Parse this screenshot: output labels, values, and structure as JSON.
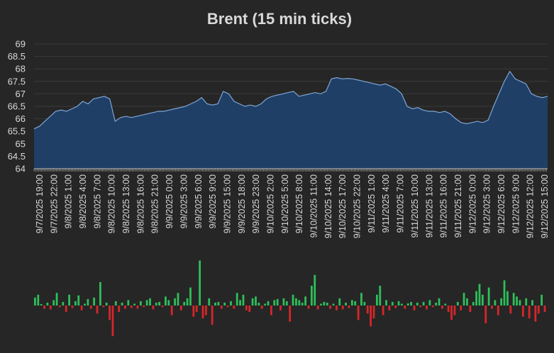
{
  "colors": {
    "background": "#262626",
    "area_fill": "#1f3f66",
    "area_line": "#7fa6d6",
    "grid": "#3a3a3a",
    "text": "#d9d9d9",
    "positive_bar": "#2fbf5a",
    "negative_bar": "#d8262a"
  },
  "chart_data": [
    {
      "type": "area",
      "title": "Brent (15 min ticks)",
      "xlabel": "",
      "ylabel": "",
      "ylim": [
        64,
        69
      ],
      "yticks": [
        "64",
        "64.5",
        "65",
        "65.5",
        "66",
        "66.5",
        "67",
        "67.5",
        "68",
        "68.5",
        "69"
      ],
      "grid": true,
      "xticks": [
        "9/7/2025 19:00",
        "9/7/2025 22:00",
        "9/8/2025 1:00",
        "9/8/2025 4:00",
        "9/8/2025 7:00",
        "9/8/2025 10:00",
        "9/8/2025 13:00",
        "9/8/2025 16:00",
        "9/8/2025 21:00",
        "9/9/2025 0:00",
        "9/9/2025 3:00",
        "9/9/2025 6:00",
        "9/9/2025 9:00",
        "9/9/2025 15:00",
        "9/9/2025 18:00",
        "9/9/2025 23:00",
        "9/10/2025 2:00",
        "9/10/2025 5:00",
        "9/10/2025 8:00",
        "9/10/2025 11:00",
        "9/10/2025 14:00",
        "9/10/2025 17:00",
        "9/10/2025 22:00",
        "9/11/2025 1:00",
        "9/11/2025 4:00",
        "9/11/2025 7:00",
        "9/11/2025 10:00",
        "9/11/2025 13:00",
        "9/11/2025 16:00",
        "9/11/2025 21:00",
        "9/12/2025 0:00",
        "9/12/2025 3:00",
        "9/12/2025 6:00",
        "9/12/2025 9:00",
        "9/12/2025 12:00",
        "9/12/2025 15:00"
      ],
      "series": [
        {
          "values": [
            65.6,
            65.7,
            65.9,
            66.1,
            66.3,
            66.35,
            66.3,
            66.4,
            66.5,
            66.7,
            66.6,
            66.8,
            66.85,
            66.9,
            66.8,
            65.9,
            66.05,
            66.1,
            66.05,
            66.1,
            66.15,
            66.2,
            66.25,
            66.3,
            66.3,
            66.35,
            66.4,
            66.45,
            66.5,
            66.6,
            66.7,
            66.85,
            66.6,
            66.55,
            66.6,
            67.1,
            67.0,
            66.7,
            66.6,
            66.5,
            66.55,
            66.5,
            66.6,
            66.8,
            66.9,
            66.95,
            67.0,
            67.05,
            67.1,
            66.9,
            66.95,
            67.0,
            67.05,
            67.0,
            67.1,
            67.6,
            67.65,
            67.6,
            67.62,
            67.6,
            67.55,
            67.5,
            67.45,
            67.4,
            67.35,
            67.4,
            67.3,
            67.2,
            67.0,
            66.5,
            66.4,
            66.45,
            66.35,
            66.3,
            66.3,
            66.25,
            66.3,
            66.2,
            66.0,
            65.85,
            65.8,
            65.85,
            65.9,
            65.85,
            65.95,
            66.5,
            67.0,
            67.5,
            67.9,
            67.6,
            67.5,
            67.4,
            67.0,
            66.9,
            66.85,
            66.9
          ]
        }
      ]
    },
    {
      "type": "bar",
      "values": [
        0.22,
        0.3,
        0.04,
        -0.1,
        0.08,
        -0.12,
        0.15,
        0.35,
        -0.05,
        0.1,
        -0.2,
        0.3,
        -0.08,
        0.12,
        0.28,
        -0.15,
        0.05,
        0.18,
        -0.1,
        0.22,
        -0.25,
        0.65,
        -0.05,
        0.08,
        -0.45,
        -0.95,
        0.12,
        -0.2,
        0.08,
        -0.1,
        0.15,
        -0.08,
        0.05,
        -0.1,
        0.12,
        -0.05,
        0.15,
        0.2,
        -0.12,
        0.08,
        0.1,
        -0.05,
        0.25,
        0.15,
        -0.3,
        0.2,
        0.35,
        -0.15,
        0.1,
        0.2,
        0.5,
        -0.35,
        -0.2,
        1.25,
        -0.4,
        -0.3,
        0.2,
        -0.6,
        0.08,
        0.1,
        -0.1,
        0.08,
        -0.05,
        0.12,
        -0.1,
        0.35,
        0.15,
        0.3,
        -0.15,
        -0.2,
        0.2,
        0.25,
        0.08,
        -0.1,
        0.05,
        0.12,
        -0.3,
        0.15,
        0.18,
        -0.15,
        0.2,
        0.12,
        -0.5,
        0.3,
        0.2,
        0.15,
        0.08,
        0.25,
        -0.1,
        0.55,
        0.85,
        -0.12,
        0.05,
        0.1,
        0.08,
        -0.1,
        0.05,
        -0.15,
        0.2,
        -0.12,
        0.08,
        -0.08,
        0.15,
        0.12,
        -0.45,
        0.35,
        0.1,
        -0.25,
        -0.65,
        -0.4,
        0.3,
        0.55,
        -0.3,
        0.15,
        -0.15,
        0.1,
        -0.08,
        0.12,
        0.05,
        -0.1,
        0.06,
        0.1,
        -0.15,
        0.08,
        -0.05,
        0.1,
        -0.12,
        0.15,
        -0.05,
        0.08,
        0.2,
        -0.1,
        0.05,
        -0.2,
        -0.45,
        -0.3,
        0.1,
        -0.15,
        0.35,
        0.2,
        -0.2,
        0.1,
        0.4,
        0.6,
        0.3,
        -0.55,
        0.5,
        -0.1,
        0.15,
        -0.3,
        0.2,
        0.7,
        0.4,
        -0.25,
        0.35,
        0.25,
        0.15,
        -0.35,
        0.2,
        -0.4,
        0.15,
        -0.5,
        -0.25,
        0.3,
        -0.2
      ],
      "ylim": [
        -1.1,
        1.3
      ]
    }
  ]
}
